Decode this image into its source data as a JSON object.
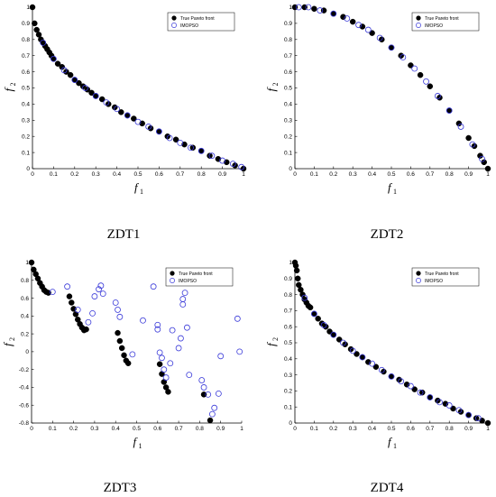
{
  "chart_data": [
    {
      "type": "scatter",
      "caption": "ZDT1",
      "xlabel": "f",
      "xlabel_sub": "1",
      "ylabel": "f",
      "ylabel_sub": "2",
      "xlim": [
        0,
        1
      ],
      "ylim": [
        0,
        1
      ],
      "xticks": [
        0,
        0.1,
        0.2,
        0.3,
        0.4,
        0.5,
        0.6,
        0.7,
        0.8,
        0.9,
        1
      ],
      "xtick_labels": [
        "0",
        "0.1",
        "0.2",
        "0.3",
        "0.4",
        "0.5",
        "0.6",
        "0.7",
        "0.8",
        "0.9",
        "1"
      ],
      "yticks": [
        0,
        0.1,
        0.2,
        0.3,
        0.4,
        0.5,
        0.6,
        0.7,
        0.8,
        0.9,
        1
      ],
      "ytick_labels": [
        "0",
        "0.1",
        "0.2",
        "0.3",
        "0.4",
        "0.5",
        "0.6",
        "0.7",
        "0.8",
        "0.9",
        "1"
      ],
      "legend": "top-right",
      "series": [
        {
          "name": "True Pareto front",
          "marker": "filled",
          "color": "#000000",
          "x": [
            0,
            0.01,
            0.02,
            0.03,
            0.04,
            0.05,
            0.06,
            0.07,
            0.08,
            0.09,
            0.1,
            0.12,
            0.14,
            0.16,
            0.18,
            0.2,
            0.22,
            0.24,
            0.26,
            0.28,
            0.3,
            0.33,
            0.36,
            0.39,
            0.42,
            0.45,
            0.48,
            0.52,
            0.56,
            0.6,
            0.64,
            0.68,
            0.72,
            0.76,
            0.8,
            0.84,
            0.88,
            0.92,
            0.96,
            1
          ],
          "y": [
            1,
            0.9,
            0.86,
            0.83,
            0.8,
            0.78,
            0.76,
            0.74,
            0.72,
            0.7,
            0.68,
            0.65,
            0.63,
            0.6,
            0.58,
            0.55,
            0.53,
            0.51,
            0.49,
            0.47,
            0.45,
            0.43,
            0.4,
            0.38,
            0.35,
            0.33,
            0.31,
            0.28,
            0.25,
            0.23,
            0.2,
            0.18,
            0.15,
            0.13,
            0.11,
            0.08,
            0.06,
            0.04,
            0.02,
            0
          ]
        },
        {
          "name": "IMOPSO",
          "marker": "open",
          "color": "#3b3bd9",
          "x": [
            0.05,
            0.1,
            0.15,
            0.2,
            0.25,
            0.3,
            0.35,
            0.4,
            0.45,
            0.5,
            0.55,
            0.6,
            0.65,
            0.7,
            0.75,
            0.8,
            0.85,
            0.9,
            0.95,
            0.99
          ],
          "y": [
            0.78,
            0.68,
            0.61,
            0.55,
            0.5,
            0.45,
            0.41,
            0.37,
            0.33,
            0.29,
            0.26,
            0.23,
            0.19,
            0.16,
            0.13,
            0.11,
            0.08,
            0.05,
            0.03,
            0.01
          ]
        }
      ]
    },
    {
      "type": "scatter",
      "caption": "ZDT2",
      "xlabel": "f",
      "xlabel_sub": "1",
      "ylabel": "f",
      "ylabel_sub": "2",
      "xlim": [
        0,
        1
      ],
      "ylim": [
        0,
        1
      ],
      "xticks": [
        0,
        0.1,
        0.2,
        0.3,
        0.4,
        0.5,
        0.6,
        0.7,
        0.8,
        0.9,
        1
      ],
      "xtick_labels": [
        "0",
        "0.1",
        "0.2",
        "0.3",
        "0.4",
        "0.5",
        "0.6",
        "0.7",
        "0.8",
        "0.9",
        "1"
      ],
      "yticks": [
        0,
        0.1,
        0.2,
        0.3,
        0.4,
        0.5,
        0.6,
        0.7,
        0.8,
        0.9,
        1
      ],
      "ytick_labels": [
        "0",
        "0.1",
        "0.2",
        "0.3",
        "0.4",
        "0.5",
        "0.6",
        "0.7",
        "0.8",
        "0.9",
        "1"
      ],
      "legend": "top-right",
      "series": [
        {
          "name": "True Pareto front",
          "marker": "filled",
          "color": "#000000",
          "x": [
            0,
            0.05,
            0.1,
            0.15,
            0.2,
            0.25,
            0.3,
            0.35,
            0.4,
            0.45,
            0.5,
            0.55,
            0.6,
            0.65,
            0.7,
            0.75,
            0.8,
            0.85,
            0.9,
            0.93,
            0.96,
            0.98,
            1
          ],
          "y": [
            1,
            1,
            0.99,
            0.98,
            0.96,
            0.94,
            0.91,
            0.88,
            0.84,
            0.8,
            0.75,
            0.7,
            0.64,
            0.58,
            0.51,
            0.44,
            0.36,
            0.28,
            0.19,
            0.14,
            0.08,
            0.04,
            0
          ]
        },
        {
          "name": "IMOPSO",
          "marker": "open",
          "color": "#3b3bd9",
          "x": [
            0.02,
            0.07,
            0.13,
            0.2,
            0.27,
            0.33,
            0.38,
            0.44,
            0.5,
            0.56,
            0.62,
            0.68,
            0.74,
            0.8,
            0.86,
            0.92,
            0.97
          ],
          "y": [
            1,
            1,
            0.98,
            0.96,
            0.93,
            0.89,
            0.86,
            0.81,
            0.75,
            0.69,
            0.62,
            0.54,
            0.45,
            0.36,
            0.26,
            0.15,
            0.06
          ]
        }
      ]
    },
    {
      "type": "scatter",
      "caption": "ZDT3",
      "xlabel": "f",
      "xlabel_sub": "1",
      "ylabel": "f",
      "ylabel_sub": "2",
      "xlim": [
        0,
        1
      ],
      "ylim": [
        -0.8,
        1
      ],
      "xticks": [
        0,
        0.1,
        0.2,
        0.3,
        0.4,
        0.5,
        0.6,
        0.7,
        0.8,
        0.9,
        1
      ],
      "xtick_labels": [
        "0",
        "0.1",
        "0.2",
        "0.3",
        "0.4",
        "0.5",
        "0.6",
        "0.7",
        "0.8",
        "0.9",
        "1"
      ],
      "yticks": [
        -0.8,
        -0.6,
        -0.4,
        -0.2,
        0,
        0.2,
        0.4,
        0.6,
        0.8,
        1
      ],
      "ytick_labels": [
        "-0.8",
        "-0.6",
        "-0.4",
        "-0.2",
        "0",
        "0.2",
        "0.4",
        "0.6",
        "0.8",
        "1"
      ],
      "legend": "top-right",
      "series": [
        {
          "name": "True Pareto front",
          "marker": "filled",
          "color": "#000000",
          "x": [
            0,
            0.01,
            0.02,
            0.03,
            0.04,
            0.05,
            0.06,
            0.07,
            0.08,
            0.18,
            0.19,
            0.2,
            0.21,
            0.22,
            0.23,
            0.24,
            0.25,
            0.26,
            0.41,
            0.42,
            0.43,
            0.44,
            0.45,
            0.46,
            0.61,
            0.62,
            0.63,
            0.64,
            0.65,
            0.82,
            0.85
          ],
          "y": [
            1,
            0.92,
            0.87,
            0.82,
            0.77,
            0.73,
            0.69,
            0.67,
            0.66,
            0.62,
            0.55,
            0.48,
            0.42,
            0.36,
            0.31,
            0.27,
            0.24,
            0.25,
            0.21,
            0.12,
            0.04,
            -0.04,
            -0.1,
            -0.13,
            -0.14,
            -0.25,
            -0.34,
            -0.4,
            -0.45,
            -0.48,
            -0.77
          ]
        },
        {
          "name": "IMOPSO",
          "marker": "open",
          "color": "#3b3bd9",
          "x": [
            0.1,
            0.17,
            0.22,
            0.27,
            0.29,
            0.3,
            0.32,
            0.33,
            0.34,
            0.4,
            0.41,
            0.42,
            0.48,
            0.53,
            0.58,
            0.6,
            0.6,
            0.61,
            0.62,
            0.63,
            0.64,
            0.66,
            0.67,
            0.7,
            0.71,
            0.72,
            0.72,
            0.73,
            0.74,
            0.75,
            0.81,
            0.82,
            0.84,
            0.86,
            0.87,
            0.89,
            0.9,
            0.98,
            0.99
          ],
          "y": [
            0.67,
            0.73,
            0.47,
            0.33,
            0.43,
            0.62,
            0.7,
            0.74,
            0.65,
            0.55,
            0.47,
            0.39,
            -0.03,
            0.35,
            0.73,
            0.3,
            0.25,
            -0.01,
            -0.07,
            -0.2,
            -0.29,
            -0.13,
            0.24,
            0.04,
            0.15,
            0.53,
            0.59,
            0.66,
            0.27,
            -0.26,
            -0.32,
            -0.4,
            -0.48,
            -0.7,
            -0.63,
            -0.47,
            -0.05,
            0.37,
            0
          ]
        }
      ]
    },
    {
      "type": "scatter",
      "caption": "ZDT4",
      "xlabel": "f",
      "xlabel_sub": "1",
      "ylabel": "f",
      "ylabel_sub": "2",
      "xlim": [
        0,
        1
      ],
      "ylim": [
        0,
        1
      ],
      "xticks": [
        0,
        0.1,
        0.2,
        0.3,
        0.4,
        0.5,
        0.6,
        0.7,
        0.8,
        0.9,
        1
      ],
      "xtick_labels": [
        "0",
        "0.1",
        "0.2",
        "0.3",
        "0.4",
        "0.5",
        "0.6",
        "0.7",
        "0.8",
        "0.9",
        "1"
      ],
      "yticks": [
        0,
        0.1,
        0.2,
        0.3,
        0.4,
        0.5,
        0.6,
        0.7,
        0.8,
        0.9,
        1
      ],
      "ytick_labels": [
        "0",
        "0.1",
        "0.2",
        "0.3",
        "0.4",
        "0.5",
        "0.6",
        "0.7",
        "0.8",
        "0.9",
        "1"
      ],
      "legend": "top-right",
      "series": [
        {
          "name": "True Pareto front",
          "marker": "filled",
          "color": "#000000",
          "x": [
            0,
            0.005,
            0.01,
            0.015,
            0.02,
            0.03,
            0.04,
            0.05,
            0.06,
            0.07,
            0.08,
            0.1,
            0.12,
            0.14,
            0.16,
            0.18,
            0.2,
            0.23,
            0.26,
            0.29,
            0.32,
            0.35,
            0.38,
            0.42,
            0.46,
            0.5,
            0.54,
            0.58,
            0.62,
            0.66,
            0.7,
            0.74,
            0.78,
            0.82,
            0.86,
            0.9,
            0.94,
            0.97,
            1
          ],
          "y": [
            1,
            0.98,
            0.95,
            0.9,
            0.86,
            0.83,
            0.8,
            0.77,
            0.75,
            0.73,
            0.72,
            0.68,
            0.65,
            0.62,
            0.6,
            0.57,
            0.55,
            0.52,
            0.49,
            0.46,
            0.43,
            0.41,
            0.38,
            0.35,
            0.32,
            0.29,
            0.27,
            0.24,
            0.21,
            0.19,
            0.16,
            0.14,
            0.12,
            0.09,
            0.07,
            0.05,
            0.03,
            0.015,
            0
          ]
        },
        {
          "name": "IMOPSO",
          "marker": "open",
          "color": "#3b3bd9",
          "x": [
            0.05,
            0.1,
            0.15,
            0.2,
            0.25,
            0.3,
            0.35,
            0.4,
            0.45,
            0.5,
            0.55,
            0.6,
            0.65,
            0.7,
            0.75,
            0.8,
            0.85,
            0.9,
            0.95
          ],
          "y": [
            0.78,
            0.68,
            0.61,
            0.55,
            0.5,
            0.45,
            0.41,
            0.37,
            0.33,
            0.29,
            0.26,
            0.23,
            0.19,
            0.16,
            0.13,
            0.11,
            0.08,
            0.05,
            0.03
          ]
        }
      ]
    }
  ]
}
